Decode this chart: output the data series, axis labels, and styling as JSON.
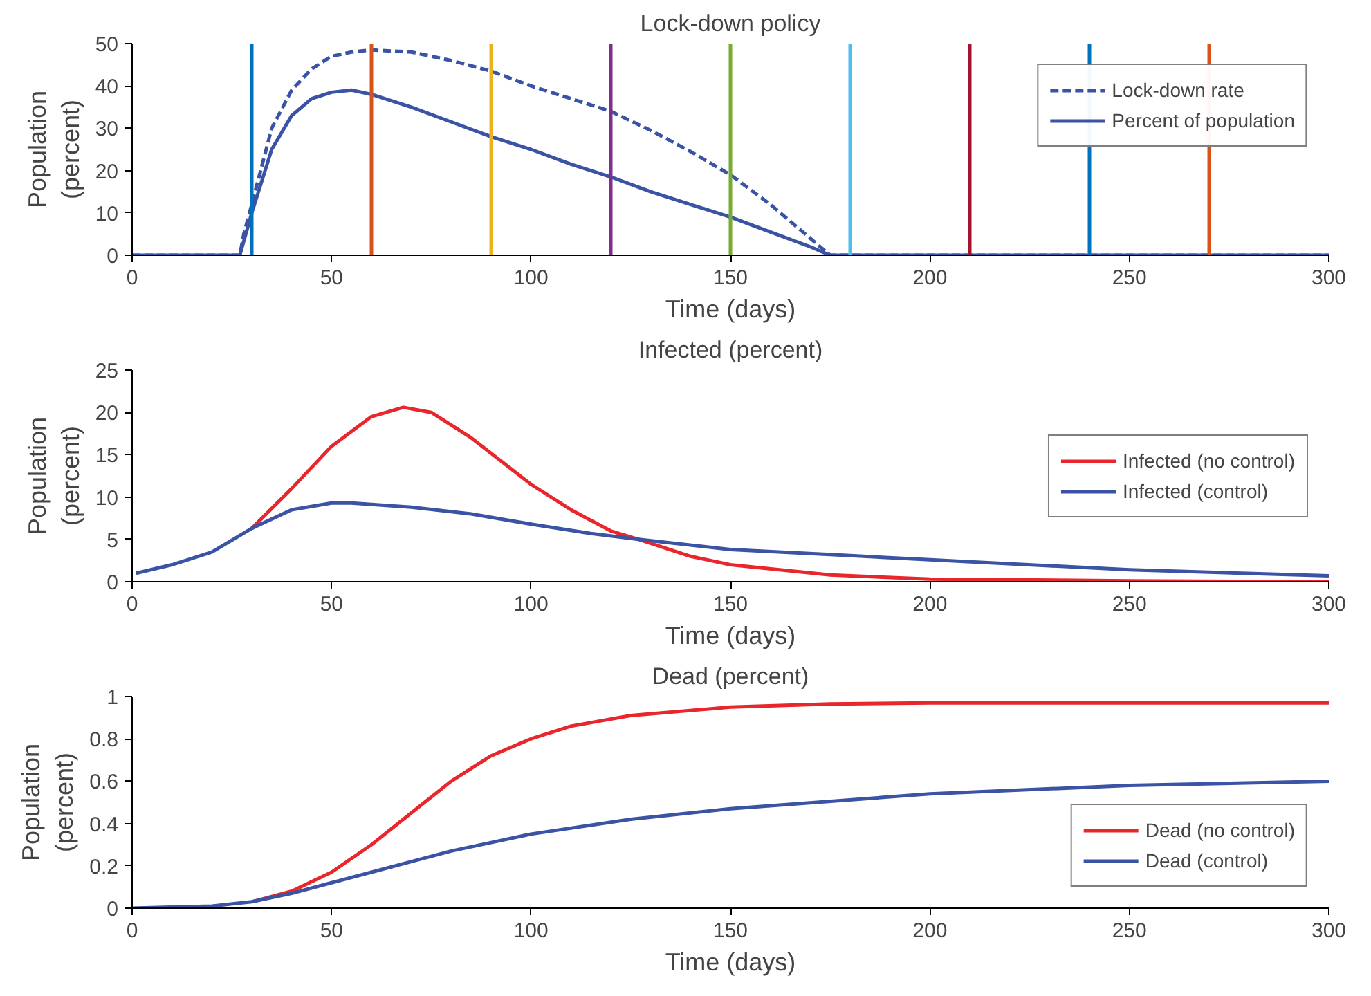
{
  "chart_data": [
    {
      "type": "line",
      "title": "Lock-down policy",
      "xlabel": "Time (days)",
      "ylabel": "Population\n(percent)",
      "xlim": [
        0,
        300
      ],
      "ylim": [
        0,
        50
      ],
      "xticks": [
        0,
        50,
        100,
        150,
        200,
        250,
        300
      ],
      "yticks": [
        0,
        10,
        20,
        30,
        40,
        50
      ],
      "grid": false,
      "legend": "top right",
      "series": [
        {
          "name": "Lock-down rate",
          "color": "#3a53a4",
          "line_style": "dashed",
          "x": [
            0,
            27,
            28,
            30,
            35,
            40,
            45,
            50,
            55,
            60,
            70,
            80,
            90,
            100,
            110,
            120,
            130,
            140,
            150,
            160,
            170,
            175,
            300
          ],
          "values": [
            0,
            0,
            5,
            12,
            30,
            39,
            44,
            47,
            48,
            48.5,
            48,
            46,
            43.5,
            40,
            37,
            34,
            29.5,
            24.5,
            19,
            12,
            4,
            0,
            0
          ]
        },
        {
          "name": "Percent of population",
          "color": "#3a53a4",
          "line_style": "solid",
          "x": [
            0,
            27,
            30,
            35,
            40,
            45,
            50,
            55,
            60,
            70,
            80,
            90,
            100,
            110,
            120,
            130,
            140,
            150,
            160,
            170,
            175,
            300
          ],
          "values": [
            0,
            0,
            10,
            25,
            33,
            37,
            38.5,
            39,
            38,
            35,
            31.5,
            28,
            25,
            21.5,
            18.5,
            15,
            12,
            9,
            5.5,
            2,
            0,
            0
          ]
        }
      ],
      "ref_lines": [
        {
          "axis": "x",
          "value": 30,
          "color": "#0072bd"
        },
        {
          "axis": "x",
          "value": 60,
          "color": "#d95319"
        },
        {
          "axis": "x",
          "value": 90,
          "color": "#edb120"
        },
        {
          "axis": "x",
          "value": 120,
          "color": "#7e2f8e"
        },
        {
          "axis": "x",
          "value": 150,
          "color": "#77ac30"
        },
        {
          "axis": "x",
          "value": 180,
          "color": "#4dbeee"
        },
        {
          "axis": "x",
          "value": 210,
          "color": "#a2142f"
        },
        {
          "axis": "x",
          "value": 240,
          "color": "#0072bd"
        },
        {
          "axis": "x",
          "value": 270,
          "color": "#d95319"
        }
      ]
    },
    {
      "type": "line",
      "title": "Infected (percent)",
      "xlabel": "Time (days)",
      "ylabel": "Population\n(percent)",
      "xlim": [
        0,
        300
      ],
      "ylim": [
        0,
        25
      ],
      "xticks": [
        0,
        50,
        100,
        150,
        200,
        250,
        300
      ],
      "yticks": [
        0,
        5,
        10,
        15,
        20,
        25
      ],
      "grid": false,
      "legend": "right",
      "series": [
        {
          "name": "Infected (no control)",
          "color": "#e8262b",
          "x": [
            30,
            40,
            50,
            60,
            68,
            75,
            85,
            100,
            110,
            120,
            127,
            140,
            150,
            175,
            200,
            250,
            300
          ],
          "values": [
            6.3,
            11,
            16,
            19.5,
            20.6,
            20,
            17,
            11.5,
            8.5,
            6,
            5,
            3,
            2,
            0.8,
            0.3,
            0.1,
            0
          ]
        },
        {
          "name": "Infected (control)",
          "color": "#3a53a4",
          "x": [
            1,
            10,
            20,
            30,
            40,
            50,
            55,
            70,
            85,
            100,
            115,
            127,
            150,
            175,
            200,
            250,
            300
          ],
          "values": [
            1,
            2,
            3.5,
            6.3,
            8.5,
            9.3,
            9.3,
            8.8,
            8,
            6.8,
            5.7,
            5,
            3.8,
            3.2,
            2.6,
            1.4,
            0.7
          ]
        }
      ]
    },
    {
      "type": "line",
      "title": "Dead (percent)",
      "xlabel": "Time (days)",
      "ylabel": "Population\n(percent)",
      "xlim": [
        0,
        300
      ],
      "ylim": [
        0,
        1
      ],
      "xticks": [
        0,
        50,
        100,
        150,
        200,
        250,
        300
      ],
      "yticks": [
        0,
        0.2,
        0.4,
        0.6,
        0.8,
        1
      ],
      "grid": false,
      "legend": "bottom right",
      "series": [
        {
          "name": "Dead (no control)",
          "color": "#e8262b",
          "x": [
            30,
            40,
            50,
            60,
            70,
            80,
            90,
            100,
            110,
            125,
            150,
            175,
            200,
            300
          ],
          "values": [
            0.03,
            0.08,
            0.17,
            0.3,
            0.45,
            0.6,
            0.72,
            0.8,
            0.86,
            0.91,
            0.95,
            0.965,
            0.97,
            0.97
          ]
        },
        {
          "name": "Dead (control)",
          "color": "#3a53a4",
          "x": [
            0,
            20,
            30,
            40,
            50,
            60,
            70,
            80,
            90,
            100,
            125,
            150,
            200,
            250,
            300
          ],
          "values": [
            0,
            0.01,
            0.03,
            0.07,
            0.12,
            0.17,
            0.22,
            0.27,
            0.31,
            0.35,
            0.42,
            0.47,
            0.54,
            0.58,
            0.6
          ]
        }
      ]
    }
  ]
}
